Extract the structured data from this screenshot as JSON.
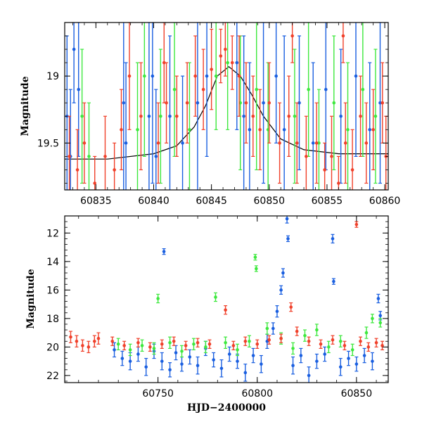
{
  "chart_data": [
    {
      "type": "scatter",
      "panel": "top",
      "ylabel": "Magnitude",
      "xlabel": "",
      "xlim": [
        60832.3,
        60860.3
      ],
      "ylim": [
        19.85,
        18.6
      ],
      "y_inverted": true,
      "grid": false,
      "legend": "none",
      "x_ticks": [
        60835,
        60840,
        60845,
        60850,
        60855,
        60860
      ],
      "x_tick_labels": [
        "60835",
        "60840",
        "60845",
        "60850",
        "60855",
        "60860"
      ],
      "y_ticks": [
        19,
        19.5
      ],
      "y_tick_labels": [
        "19",
        "19.5"
      ],
      "model_curve": {
        "color": "#000000",
        "x": [
          60832.3,
          60836,
          60840,
          60842,
          60843.5,
          60844.5,
          60845.5,
          60846.5,
          60847.5,
          60848.5,
          60849.5,
          60851,
          60853,
          60856,
          60860.3
        ],
        "y": [
          19.62,
          19.62,
          19.58,
          19.52,
          19.38,
          19.22,
          19.0,
          18.93,
          19.0,
          19.14,
          19.3,
          19.47,
          19.55,
          19.58,
          19.58
        ]
      },
      "series": [
        {
          "color": "#1a5fe0",
          "points": [
            [
              60832.5,
              19.3,
              0.6
            ],
            [
              60832.8,
              19.6,
              0.5
            ],
            [
              60833.1,
              18.8,
              0.4
            ],
            [
              60833.5,
              19.1,
              0.5
            ],
            [
              60837.4,
              19.2,
              0.8
            ],
            [
              60837.6,
              19.5,
              0.6
            ],
            [
              60839.6,
              19.3,
              0.7
            ],
            [
              60839.9,
              19.0,
              0.8
            ],
            [
              60840.2,
              19.6,
              0.5
            ],
            [
              60841.4,
              19.3,
              0.6
            ],
            [
              60842.5,
              19.5,
              0.5
            ],
            [
              60843.8,
              19.2,
              0.7
            ],
            [
              60844.6,
              19.0,
              0.6
            ],
            [
              60847.2,
              18.9,
              0.5
            ],
            [
              60847.8,
              19.3,
              0.6
            ],
            [
              60848.3,
              19.4,
              0.5
            ],
            [
              60849.5,
              19.2,
              0.6
            ],
            [
              60850.6,
              19.0,
              0.5
            ],
            [
              60851.3,
              19.4,
              0.7
            ],
            [
              60852.6,
              19.2,
              0.5
            ],
            [
              60853.8,
              19.5,
              0.6
            ],
            [
              60854.9,
              19.1,
              0.6
            ],
            [
              60856.2,
              19.3,
              0.5
            ],
            [
              60857.5,
              19.0,
              0.6
            ],
            [
              60858.7,
              19.4,
              0.5
            ],
            [
              60859.6,
              19.2,
              0.6
            ]
          ]
        },
        {
          "color": "#3ee83e",
          "points": [
            [
              60833.8,
              19.3,
              0.5
            ],
            [
              60834.4,
              19.6,
              0.4
            ],
            [
              60838.6,
              19.4,
              0.5
            ],
            [
              60839.2,
              19.0,
              0.6
            ],
            [
              60840.6,
              19.3,
              0.5
            ],
            [
              60841.8,
              19.1,
              0.5
            ],
            [
              60843.1,
              19.4,
              0.5
            ],
            [
              60845.4,
              19.0,
              0.4
            ],
            [
              60846.4,
              18.9,
              0.5
            ],
            [
              60847.5,
              19.2,
              0.5
            ],
            [
              60848.9,
              19.1,
              0.6
            ],
            [
              60849.9,
              19.4,
              0.5
            ],
            [
              60852.2,
              19.3,
              0.5
            ],
            [
              60853.4,
              19.1,
              0.5
            ],
            [
              60854.3,
              19.5,
              0.4
            ],
            [
              60855.6,
              19.2,
              0.5
            ],
            [
              60856.8,
              19.4,
              0.5
            ],
            [
              60858.1,
              19.1,
              0.5
            ],
            [
              60859.2,
              19.3,
              0.5
            ]
          ]
        },
        {
          "color": "#f0402a",
          "points": [
            [
              60832.7,
              19.6,
              0.3
            ],
            [
              60833.4,
              19.7,
              0.3
            ],
            [
              60834.0,
              19.5,
              0.3
            ],
            [
              60834.9,
              19.8,
              0.2
            ],
            [
              60835.8,
              19.6,
              0.3
            ],
            [
              60836.6,
              19.7,
              0.2
            ],
            [
              60837.2,
              19.4,
              0.3
            ],
            [
              60837.9,
              19.0,
              0.4
            ],
            [
              60838.9,
              19.3,
              0.4
            ],
            [
              60840.4,
              19.5,
              0.3
            ],
            [
              60841.1,
              19.2,
              0.3
            ],
            [
              60842.0,
              19.3,
              0.3
            ],
            [
              60842.9,
              19.2,
              0.3
            ],
            [
              60843.6,
              19.0,
              0.3
            ],
            [
              60844.3,
              19.1,
              0.3
            ],
            [
              60845.0,
              18.95,
              0.3
            ],
            [
              60845.8,
              18.85,
              0.2
            ],
            [
              60846.2,
              18.8,
              0.2
            ],
            [
              60846.8,
              18.9,
              0.2
            ],
            [
              60847.4,
              19.0,
              0.3
            ],
            [
              60848.0,
              19.2,
              0.3
            ],
            [
              60848.6,
              19.3,
              0.3
            ],
            [
              60849.2,
              19.4,
              0.3
            ],
            [
              60850.0,
              19.2,
              0.3
            ],
            [
              60850.9,
              19.5,
              0.3
            ],
            [
              60851.7,
              19.3,
              0.3
            ],
            [
              60852.4,
              19.5,
              0.3
            ],
            [
              60853.2,
              19.6,
              0.3
            ],
            [
              60854.1,
              19.5,
              0.3
            ],
            [
              60854.8,
              19.7,
              0.2
            ],
            [
              60855.4,
              19.6,
              0.3
            ],
            [
              60856.0,
              19.8,
              0.2
            ],
            [
              60856.6,
              19.5,
              0.3
            ],
            [
              60857.2,
              19.7,
              0.3
            ],
            [
              60857.9,
              19.3,
              0.3
            ],
            [
              60858.4,
              19.5,
              0.3
            ],
            [
              60859.0,
              19.4,
              0.3
            ],
            [
              60859.8,
              19.2,
              0.3
            ],
            [
              60860.1,
              19.6,
              0.3
            ],
            [
              60852.0,
              18.7,
              0.2
            ],
            [
              60856.4,
              18.7,
              0.2
            ],
            [
              60840.9,
              18.9,
              0.3
            ]
          ]
        }
      ]
    },
    {
      "type": "scatter",
      "panel": "bottom",
      "ylabel": "Magnitude",
      "xlabel": "HJD−2400000",
      "xlim": [
        60703,
        60866
      ],
      "ylim": [
        22.5,
        10.8
      ],
      "y_inverted": true,
      "grid": false,
      "legend": "none",
      "x_ticks": [
        60750,
        60800,
        60850
      ],
      "x_tick_labels": [
        "60750",
        "60800",
        "60850"
      ],
      "y_ticks": [
        12,
        14,
        16,
        18,
        20,
        22
      ],
      "y_tick_labels": [
        "12",
        "14",
        "16",
        "18",
        "20",
        "22"
      ],
      "series": [
        {
          "color": "#1a5fe0",
          "points": [
            [
              60728,
              20.2,
              0.5
            ],
            [
              60732,
              20.8,
              0.5
            ],
            [
              60736,
              21.0,
              0.6
            ],
            [
              60740,
              20.5,
              0.5
            ],
            [
              60744,
              21.4,
              0.6
            ],
            [
              60748,
              20.3,
              0.5
            ],
            [
              60752,
              21.0,
              0.6
            ],
            [
              60753,
              13.3,
              0.2
            ],
            [
              60756,
              21.6,
              0.5
            ],
            [
              60759,
              20.4,
              0.5
            ],
            [
              60762,
              21.2,
              0.5
            ],
            [
              60766,
              20.7,
              0.5
            ],
            [
              60770,
              21.3,
              0.6
            ],
            [
              60774,
              20.1,
              0.5
            ],
            [
              60778,
              20.9,
              0.5
            ],
            [
              60782,
              21.5,
              0.6
            ],
            [
              60786,
              20.5,
              0.5
            ],
            [
              60790,
              21.0,
              0.5
            ],
            [
              60794,
              21.8,
              0.6
            ],
            [
              60798,
              20.6,
              0.5
            ],
            [
              60802,
              21.2,
              0.6
            ],
            [
              60805,
              19.6,
              0.5
            ],
            [
              60808,
              18.7,
              0.4
            ],
            [
              60810,
              17.5,
              0.4
            ],
            [
              60812,
              16.0,
              0.3
            ],
            [
              60813,
              14.8,
              0.3
            ],
            [
              60815,
              11.0,
              0.3
            ],
            [
              60815.5,
              12.4,
              0.2
            ],
            [
              60818,
              21.3,
              0.6
            ],
            [
              60822,
              20.6,
              0.5
            ],
            [
              60826,
              22.0,
              0.6
            ],
            [
              60830,
              21.0,
              0.5
            ],
            [
              60834,
              20.5,
              0.5
            ],
            [
              60838,
              12.4,
              0.3
            ],
            [
              60838.5,
              15.4,
              0.2
            ],
            [
              60842,
              21.4,
              0.6
            ],
            [
              60846,
              20.8,
              0.5
            ],
            [
              60850,
              21.2,
              0.5
            ],
            [
              60854,
              20.6,
              0.5
            ],
            [
              60858,
              21.0,
              0.6
            ],
            [
              60861,
              16.6,
              0.3
            ],
            [
              60862,
              17.8,
              0.3
            ]
          ]
        },
        {
          "color": "#3ee83e",
          "points": [
            [
              60730,
              19.8,
              0.4
            ],
            [
              60736,
              20.2,
              0.4
            ],
            [
              60742,
              19.9,
              0.4
            ],
            [
              60748,
              20.1,
              0.4
            ],
            [
              60750,
              16.6,
              0.3
            ],
            [
              60756,
              19.7,
              0.4
            ],
            [
              60762,
              20.3,
              0.4
            ],
            [
              60768,
              19.8,
              0.4
            ],
            [
              60774,
              20.0,
              0.4
            ],
            [
              60779,
              16.5,
              0.3
            ],
            [
              60784,
              19.7,
              0.4
            ],
            [
              60790,
              20.2,
              0.4
            ],
            [
              60796,
              19.6,
              0.4
            ],
            [
              60799,
              13.7,
              0.2
            ],
            [
              60799.5,
              14.5,
              0.2
            ],
            [
              60805,
              18.7,
              0.4
            ],
            [
              60812,
              19.4,
              0.4
            ],
            [
              60818,
              20.1,
              0.4
            ],
            [
              60824,
              19.2,
              0.4
            ],
            [
              60830,
              18.8,
              0.4
            ],
            [
              60836,
              20.0,
              0.4
            ],
            [
              60842,
              19.6,
              0.4
            ],
            [
              60848,
              20.2,
              0.4
            ],
            [
              60855,
              19.0,
              0.4
            ],
            [
              60858,
              18.0,
              0.3
            ],
            [
              60862,
              18.3,
              0.3
            ]
          ]
        },
        {
          "color": "#f0402a",
          "points": [
            [
              60706,
              19.3,
              0.4
            ],
            [
              60709,
              19.6,
              0.4
            ],
            [
              60712,
              19.9,
              0.4
            ],
            [
              60715,
              20.0,
              0.4
            ],
            [
              60718,
              19.6,
              0.4
            ],
            [
              60720,
              19.4,
              0.4
            ],
            [
              60727,
              19.6,
              0.3
            ],
            [
              60733,
              19.9,
              0.3
            ],
            [
              60740,
              19.7,
              0.3
            ],
            [
              60746,
              20.0,
              0.3
            ],
            [
              60752,
              19.8,
              0.3
            ],
            [
              60758,
              19.6,
              0.3
            ],
            [
              60764,
              19.9,
              0.3
            ],
            [
              60770,
              19.7,
              0.3
            ],
            [
              60776,
              19.8,
              0.3
            ],
            [
              60784,
              17.4,
              0.3
            ],
            [
              60788,
              19.9,
              0.3
            ],
            [
              60794,
              19.6,
              0.3
            ],
            [
              60800,
              19.8,
              0.3
            ],
            [
              60806,
              19.5,
              0.3
            ],
            [
              60812,
              19.4,
              0.3
            ],
            [
              60817,
              17.2,
              0.3
            ],
            [
              60820,
              18.9,
              0.3
            ],
            [
              60826,
              19.6,
              0.3
            ],
            [
              60832,
              19.8,
              0.3
            ],
            [
              60838,
              19.5,
              0.3
            ],
            [
              60844,
              19.9,
              0.3
            ],
            [
              60850,
              11.4,
              0.2
            ],
            [
              60852,
              19.6,
              0.3
            ],
            [
              60856,
              20.0,
              0.3
            ],
            [
              60860,
              19.7,
              0.3
            ],
            [
              60863,
              19.9,
              0.3
            ]
          ]
        }
      ]
    }
  ]
}
